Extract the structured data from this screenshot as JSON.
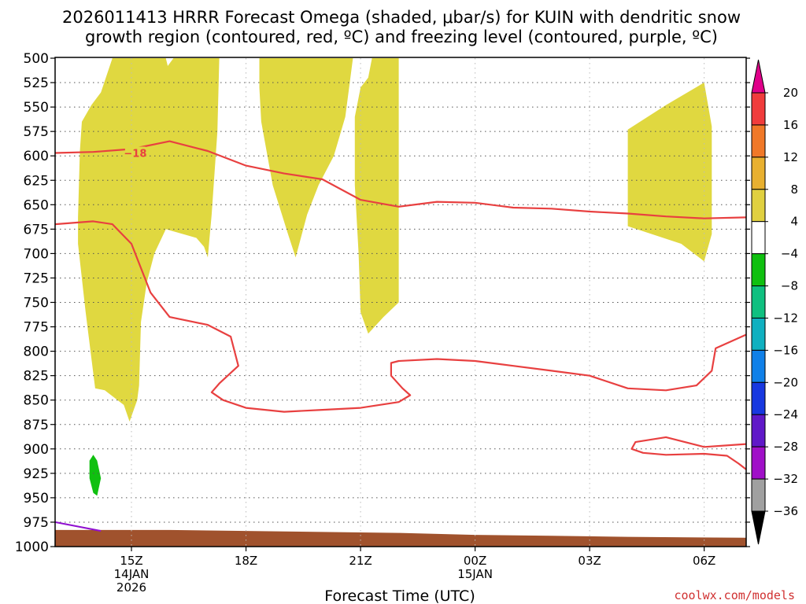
{
  "chart_data": {
    "type": "heatmap",
    "title_lines": [
      "2026011413 HRRR Forecast Omega (shaded, μbar/s) for KUIN with dendritic snow",
      "growth region (contoured, red, ºC) and freezing level (contoured, purple, ºC)"
    ],
    "xlabel": "Forecast Time (UTC)",
    "credit": "coolwx.com/models",
    "xlim": [
      13.0,
      31.1
    ],
    "ylim": [
      1000,
      500
    ],
    "y_ticks": [
      "500",
      "525",
      "550",
      "575",
      "600",
      "625",
      "650",
      "675",
      "700",
      "725",
      "750",
      "775",
      "800",
      "825",
      "850",
      "875",
      "900",
      "925",
      "950",
      "975",
      "1000"
    ],
    "x_ticks": [
      {
        "hour": 15,
        "label": "15Z",
        "sub1": "14JAN",
        "sub2": "2026"
      },
      {
        "hour": 18,
        "label": "18Z",
        "sub1": "",
        "sub2": ""
      },
      {
        "hour": 21,
        "label": "21Z",
        "sub1": "",
        "sub2": ""
      },
      {
        "hour": 24,
        "label": "00Z",
        "sub1": "15JAN",
        "sub2": ""
      },
      {
        "hour": 27,
        "label": "03Z",
        "sub1": "",
        "sub2": ""
      },
      {
        "hour": 30,
        "label": "06Z",
        "sub1": "",
        "sub2": ""
      }
    ],
    "colorbar": {
      "levels": [
        "20",
        "16",
        "12",
        "8",
        "4",
        "−4",
        "−8",
        "−12",
        "−16",
        "−20",
        "−24",
        "−28",
        "−32",
        "−36"
      ],
      "colors": [
        "#e0008a",
        "#f03c3c",
        "#f07828",
        "#e8b030",
        "#e0d040",
        "#ffffff",
        "#10c010",
        "#10c080",
        "#10b0c0",
        "#1080e8",
        "#1838e0",
        "#6018c8",
        "#a010c8",
        "#a0a0a0",
        "#000000"
      ]
    },
    "omega_regions": [
      {
        "name": "region-a",
        "value": 5,
        "points": [
          [
            13.6,
            663
          ],
          [
            13.65,
            595
          ],
          [
            13.7,
            565
          ],
          [
            13.95,
            548
          ],
          [
            14.2,
            535
          ],
          [
            14.5,
            500
          ],
          [
            15.9,
            500
          ],
          [
            15.95,
            508
          ],
          [
            16.1,
            500
          ],
          [
            17.3,
            500
          ],
          [
            17.25,
            575
          ],
          [
            17.1,
            660
          ],
          [
            17.0,
            704
          ],
          [
            16.9,
            693
          ],
          [
            16.7,
            684
          ],
          [
            16.35,
            680
          ],
          [
            15.9,
            675
          ],
          [
            15.6,
            700
          ],
          [
            15.4,
            730
          ],
          [
            15.25,
            770
          ],
          [
            15.2,
            835
          ],
          [
            15.15,
            850
          ],
          [
            14.95,
            872
          ],
          [
            14.8,
            855
          ],
          [
            14.3,
            840
          ],
          [
            14.05,
            838
          ],
          [
            13.8,
            760
          ],
          [
            13.6,
            690
          ]
        ]
      },
      {
        "name": "region-b",
        "value": 5,
        "points": [
          [
            18.35,
            500
          ],
          [
            20.8,
            500
          ],
          [
            20.6,
            560
          ],
          [
            20.3,
            600
          ],
          [
            19.9,
            630
          ],
          [
            19.6,
            660
          ],
          [
            19.3,
            704
          ],
          [
            19.1,
            680
          ],
          [
            18.7,
            630
          ],
          [
            18.4,
            565
          ],
          [
            18.35,
            530
          ]
        ]
      },
      {
        "name": "region-c",
        "value": 5,
        "points": [
          [
            21.3,
            500
          ],
          [
            22.0,
            500
          ],
          [
            22.0,
            750
          ],
          [
            21.6,
            765
          ],
          [
            21.2,
            782
          ],
          [
            21.0,
            760
          ],
          [
            20.95,
            700
          ],
          [
            20.85,
            630
          ],
          [
            20.85,
            560
          ],
          [
            21.0,
            530
          ],
          [
            21.2,
            520
          ]
        ]
      },
      {
        "name": "region-d",
        "value": 5,
        "points": [
          [
            28.0,
            573
          ],
          [
            29.0,
            548
          ],
          [
            30.0,
            525
          ],
          [
            30.2,
            570
          ],
          [
            30.2,
            680
          ],
          [
            30.0,
            708
          ],
          [
            29.4,
            690
          ],
          [
            28.0,
            672
          ],
          [
            28.0,
            625
          ]
        ]
      },
      {
        "name": "region-e",
        "value": -5,
        "points": [
          [
            14.0,
            906
          ],
          [
            14.1,
            912
          ],
          [
            14.2,
            930
          ],
          [
            14.1,
            948
          ],
          [
            14.0,
            945
          ],
          [
            13.9,
            930
          ],
          [
            13.9,
            912
          ]
        ]
      }
    ],
    "dendritic_contours": [
      {
        "name": "upper-contour",
        "label": "−18",
        "label_hour": 15.1,
        "label_mb": 597,
        "points": [
          [
            13.0,
            597
          ],
          [
            14.0,
            596
          ],
          [
            15.0,
            593
          ],
          [
            16.0,
            585
          ],
          [
            17.0,
            595
          ],
          [
            18.0,
            610
          ],
          [
            19.0,
            618
          ],
          [
            20.0,
            624
          ],
          [
            21.0,
            645
          ],
          [
            22.0,
            652
          ],
          [
            23.0,
            647
          ],
          [
            24.0,
            648
          ],
          [
            25.0,
            653
          ],
          [
            26.0,
            654
          ],
          [
            27.0,
            657
          ],
          [
            28.0,
            659
          ],
          [
            29.0,
            662
          ],
          [
            30.0,
            664
          ],
          [
            31.1,
            663
          ]
        ]
      },
      {
        "name": "lower-contour",
        "points": [
          [
            13.0,
            670
          ],
          [
            14.0,
            667
          ],
          [
            14.5,
            670
          ],
          [
            15.0,
            690
          ],
          [
            15.5,
            740
          ],
          [
            16.0,
            765
          ],
          [
            17.0,
            773
          ],
          [
            17.6,
            785
          ],
          [
            17.8,
            815
          ],
          [
            17.3,
            833
          ],
          [
            17.1,
            842
          ],
          [
            17.4,
            850
          ],
          [
            18.0,
            858
          ],
          [
            19.0,
            862
          ],
          [
            20.0,
            860
          ],
          [
            21.0,
            858
          ],
          [
            22.0,
            852
          ],
          [
            22.3,
            845
          ],
          [
            22.1,
            838
          ],
          [
            21.8,
            825
          ],
          [
            21.8,
            812
          ],
          [
            22.0,
            810
          ],
          [
            23.0,
            808
          ],
          [
            24.0,
            810
          ],
          [
            25.0,
            815
          ],
          [
            26.0,
            820
          ],
          [
            27.0,
            825
          ],
          [
            28.0,
            838
          ],
          [
            29.0,
            840
          ],
          [
            29.8,
            835
          ],
          [
            30.2,
            820
          ],
          [
            30.3,
            797
          ],
          [
            31.1,
            783
          ]
        ]
      },
      {
        "name": "right-contour",
        "points": [
          [
            31.1,
            895
          ],
          [
            30.0,
            898
          ],
          [
            29.0,
            888
          ],
          [
            28.2,
            893
          ],
          [
            28.1,
            900
          ],
          [
            28.4,
            904
          ],
          [
            29.0,
            906
          ],
          [
            30.0,
            905
          ],
          [
            30.6,
            907
          ],
          [
            30.9,
            915
          ],
          [
            31.1,
            921
          ]
        ]
      }
    ],
    "freezing_line": {
      "name": "freezing-level-line",
      "points": [
        [
          13.0,
          975
        ],
        [
          14.2,
          984
        ]
      ]
    },
    "terrain": {
      "color": "#a0522d",
      "points": [
        [
          13.0,
          983
        ],
        [
          16.0,
          983
        ],
        [
          18.0,
          984
        ],
        [
          20.0,
          985
        ],
        [
          22.0,
          986
        ],
        [
          24.0,
          988
        ],
        [
          26.0,
          989
        ],
        [
          28.0,
          990
        ],
        [
          31.1,
          991
        ]
      ]
    }
  }
}
